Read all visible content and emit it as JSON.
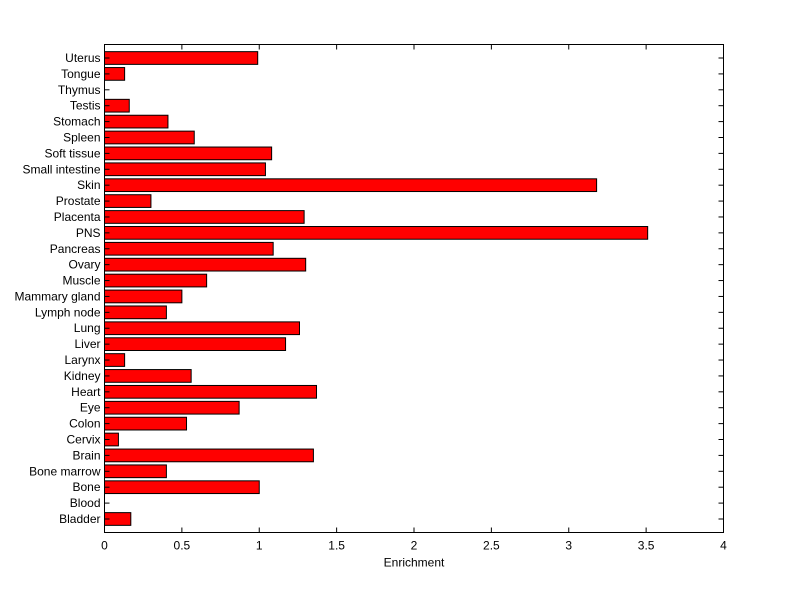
{
  "chart_data": {
    "type": "bar",
    "orientation": "horizontal",
    "xlabel": "Enrichment",
    "ylabel": "",
    "title": "",
    "xlim": [
      0,
      4
    ],
    "xticks": [
      "0",
      "0.5",
      "1",
      "1.5",
      "2",
      "2.5",
      "3",
      "3.5",
      "4"
    ],
    "categories": [
      "Bladder",
      "Blood",
      "Bone",
      "Bone marrow",
      "Brain",
      "Cervix",
      "Colon",
      "Eye",
      "Heart",
      "Kidney",
      "Larynx",
      "Liver",
      "Lung",
      "Lymph node",
      "Mammary gland",
      "Muscle",
      "Ovary",
      "Pancreas",
      "PNS",
      "Placenta",
      "Prostate",
      "Skin",
      "Small intestine",
      "Soft tissue",
      "Spleen",
      "Stomach",
      "Testis",
      "Thymus",
      "Tongue",
      "Uterus"
    ],
    "values": [
      0.17,
      0.0,
      1.0,
      0.4,
      1.35,
      0.09,
      0.53,
      0.87,
      1.37,
      0.56,
      0.13,
      1.17,
      1.26,
      0.4,
      0.5,
      0.66,
      1.3,
      1.09,
      3.51,
      1.29,
      0.3,
      3.18,
      1.04,
      1.08,
      0.58,
      0.41,
      0.16,
      0.0,
      0.13,
      0.99
    ],
    "bar_color": "#ff0000",
    "edge_color": "#000000",
    "grid": false,
    "legend": "none"
  }
}
